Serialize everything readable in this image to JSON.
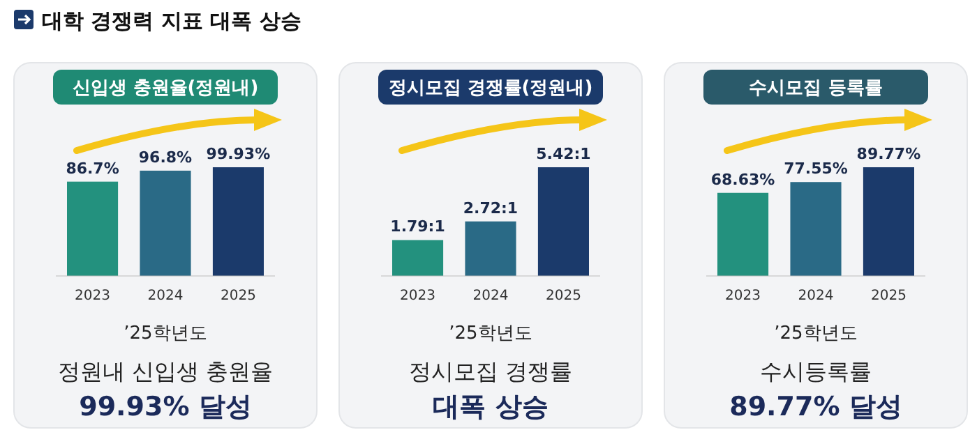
{
  "chart_data": [
    {
      "type": "bar",
      "title": "신입생 충원율(정원내)",
      "categories": [
        "2023",
        "2024",
        "2025"
      ],
      "values": [
        86.7,
        96.8,
        99.93
      ],
      "colors": [
        "#23917e",
        "#2a6a86",
        "#1b3a6b"
      ],
      "value_labels": [
        "86.7%",
        "96.8%",
        "99.93%"
      ],
      "annotations": [
        "대학 경쟁력 지표 대폭 상승",
        "’25학년도",
        "정원내 신입생 충원율",
        "99.93% 달성"
      ]
    },
    {
      "type": "bar",
      "title": "정시모집 경쟁률(정원내)",
      "categories": [
        "2023",
        "2024",
        "2025"
      ],
      "values": [
        1.79,
        2.72,
        5.42
      ],
      "colors": [
        "#23917e",
        "#2a6a86",
        "#1b3a6b"
      ],
      "value_labels": [
        "1.79:1",
        "2.72:1",
        "5.42:1"
      ],
      "annotations": [
        "’25학년도",
        "정시모집 경쟁률",
        "대폭 상승"
      ]
    },
    {
      "type": "bar",
      "title": "수시모집 등록률",
      "categories": [
        "2023",
        "2024",
        "2025"
      ],
      "values": [
        68.63,
        77.55,
        89.77
      ],
      "colors": [
        "#23917e",
        "#2a6a86",
        "#1b3a6b"
      ],
      "value_labels": [
        "68.63%",
        "77.55%",
        "89.77%"
      ],
      "annotations": [
        "’25학년도",
        "수시등록률",
        "89.77% 달성"
      ]
    }
  ]
}
